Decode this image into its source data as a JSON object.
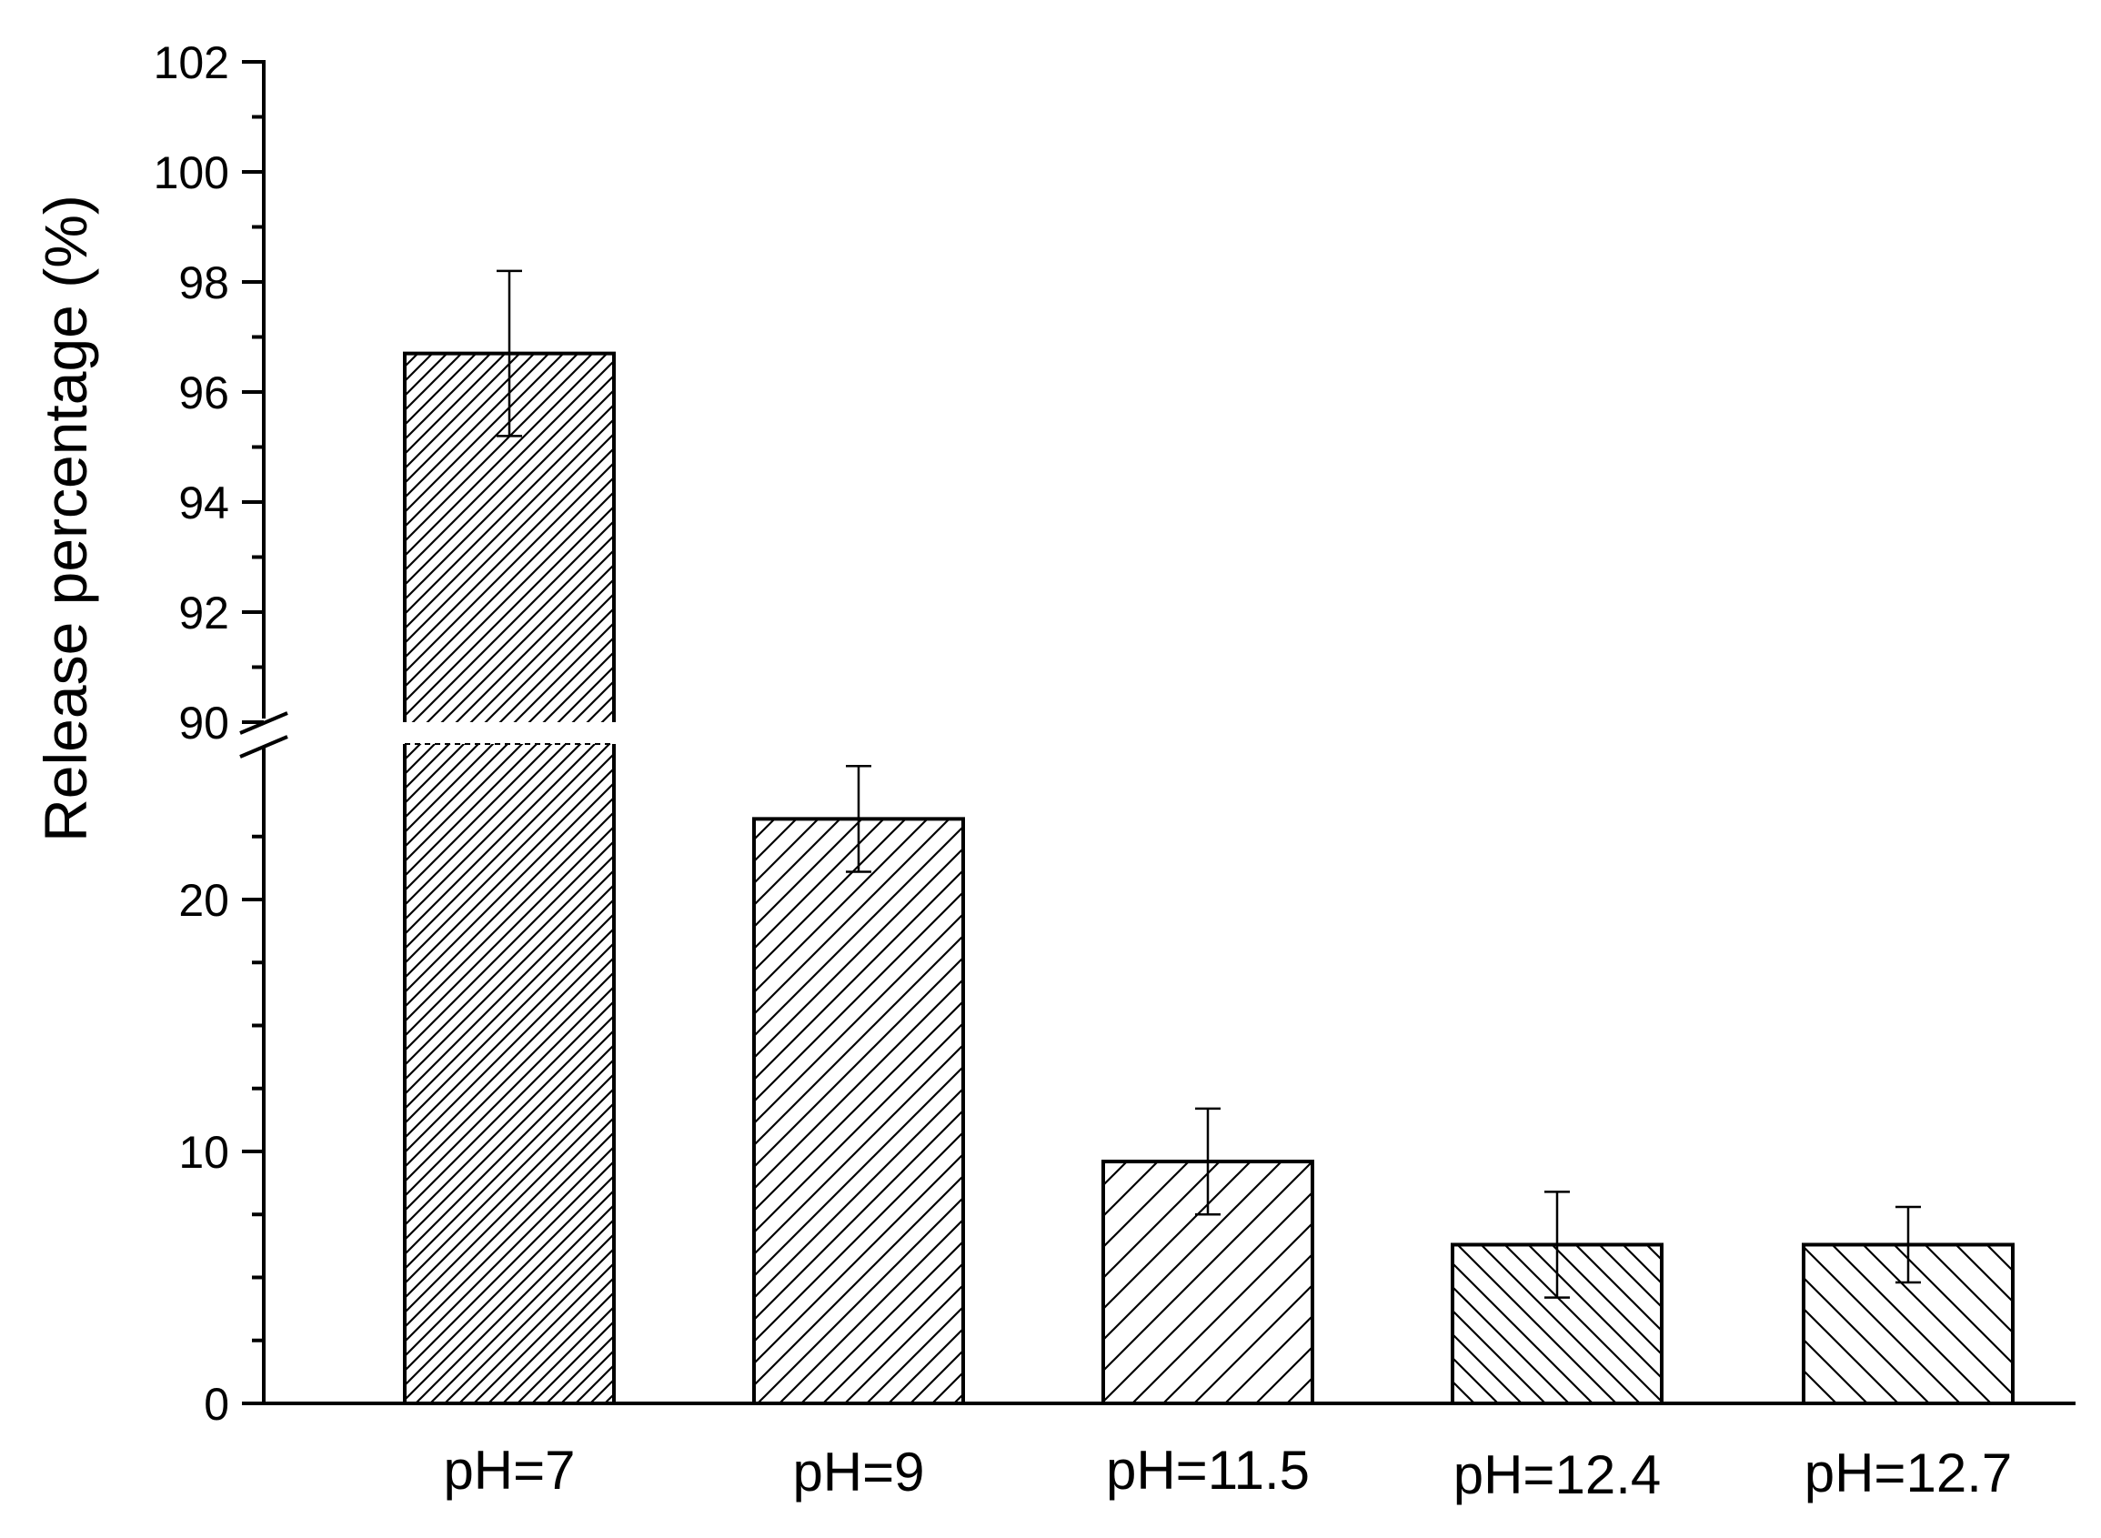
{
  "chart_data": {
    "type": "bar",
    "title": "",
    "xlabel": "",
    "ylabel": "Release percentage (%)",
    "categories": [
      "pH=7",
      "pH=9",
      "pH=11.5",
      "pH=12.4",
      "pH=12.7"
    ],
    "series": [
      {
        "values": [
          96.7,
          23.2,
          9.6,
          6.3,
          6.3
        ],
        "error": [
          1.5,
          2.1,
          2.1,
          2.1,
          1.5
        ]
      }
    ],
    "patterns": [
      "dense-forward-hatch",
      "medium-forward-hatch",
      "sparse-forward-hatch",
      "backward-hatch",
      "sparse-backward-hatch"
    ],
    "y_axis_break": {
      "lower_segment": [
        0,
        25
      ],
      "upper_segment": [
        90,
        102
      ]
    },
    "lower_ticks": [
      "0",
      "10",
      "20"
    ],
    "upper_ticks": [
      "90",
      "92",
      "94",
      "96",
      "98",
      "100",
      "102"
    ],
    "grid": false,
    "legend": "none",
    "bar_fill": "#ffffff",
    "line_color": "#000000"
  }
}
